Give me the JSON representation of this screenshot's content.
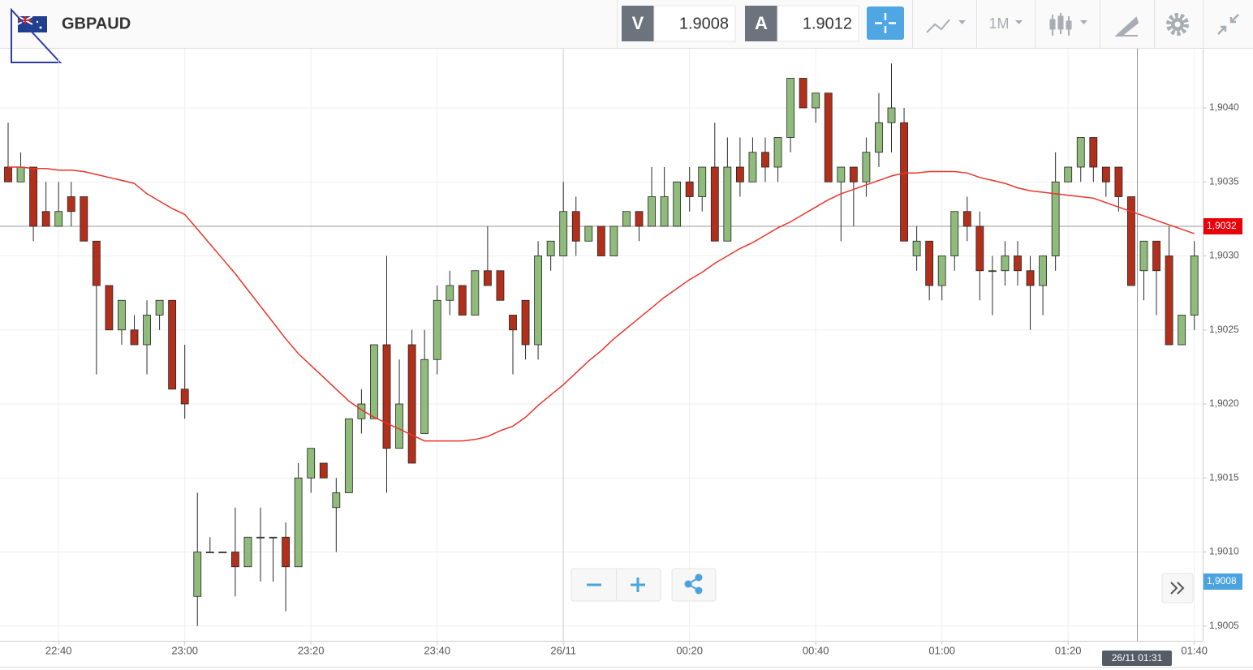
{
  "toolbar": {
    "symbol": "GBPAUD",
    "sell_label": "V",
    "sell_price": "1.9008",
    "buy_label": "A",
    "buy_price": "1.9012",
    "timeframe": "1M"
  },
  "chart_data": {
    "type": "candlestick",
    "categories": [
      null,
      null,
      null,
      null,
      "22:40",
      null,
      null,
      null,
      null,
      null,
      null,
      null,
      null,
      null,
      "23:00",
      null,
      null,
      null,
      null,
      null,
      null,
      null,
      null,
      null,
      "23:20",
      null,
      null,
      null,
      null,
      null,
      null,
      null,
      null,
      null,
      "23:40",
      null,
      null,
      null,
      null,
      null,
      null,
      null,
      null,
      null,
      "26/11",
      null,
      null,
      null,
      null,
      null,
      null,
      null,
      null,
      null,
      "00:20",
      null,
      null,
      null,
      null,
      null,
      null,
      null,
      null,
      null,
      "00:40",
      null,
      null,
      null,
      null,
      null,
      null,
      null,
      null,
      null,
      "01:00",
      null,
      null,
      null,
      null,
      null,
      null,
      null,
      null,
      null,
      "01:20",
      null,
      null,
      null,
      null,
      null,
      null,
      null,
      null,
      null,
      "01:40"
    ],
    "open": [
      1.9036,
      1.9035,
      1.9036,
      1.9033,
      1.9032,
      1.9034,
      1.9034,
      1.9031,
      1.9028,
      1.9025,
      1.9025,
      1.9024,
      1.9026,
      1.9027,
      1.9021,
      1.9007,
      1.901,
      1.901,
      1.901,
      1.9009,
      1.9011,
      1.9011,
      1.9011,
      1.9009,
      1.9015,
      1.9016,
      1.9013,
      1.9014,
      1.9019,
      1.9019,
      1.9024,
      1.9017,
      1.9024,
      1.9018,
      1.9023,
      1.9027,
      1.9028,
      1.9026,
      1.9029,
      1.9029,
      1.9026,
      1.9027,
      1.9024,
      1.903,
      1.903,
      1.9033,
      1.9031,
      1.9032,
      1.903,
      1.9032,
      1.9033,
      1.9032,
      1.9032,
      1.9032,
      1.9035,
      1.9034,
      1.9036,
      1.9031,
      1.9036,
      1.9035,
      1.9037,
      1.9036,
      1.9038,
      1.9042,
      1.904,
      1.9041,
      1.9035,
      1.9036,
      1.9035,
      1.9037,
      1.9039,
      1.9039,
      1.903,
      1.9031,
      1.9028,
      1.903,
      1.9033,
      1.9032,
      1.9029,
      1.9029,
      1.903,
      1.9029,
      1.9028,
      1.903,
      1.9035,
      1.9036,
      1.9038,
      1.9036,
      1.9036,
      1.9034,
      1.9029,
      1.9031,
      1.903,
      1.9024,
      1.9026
    ],
    "high": [
      1.9039,
      1.9037,
      1.9036,
      1.9035,
      1.9035,
      1.9035,
      1.9034,
      1.9031,
      1.9028,
      1.9027,
      1.9026,
      1.9027,
      1.9027,
      1.9027,
      1.9024,
      1.9014,
      1.9011,
      1.901,
      1.9013,
      1.9011,
      1.9013,
      1.9011,
      1.9012,
      1.9016,
      1.9017,
      1.9016,
      1.9015,
      1.9019,
      1.9021,
      1.9024,
      1.903,
      1.9023,
      1.9025,
      1.9025,
      1.9028,
      1.9029,
      1.9028,
      1.9029,
      1.9032,
      1.9029,
      1.9026,
      1.9027,
      1.9031,
      1.9031,
      1.9035,
      1.9034,
      1.9032,
      1.9032,
      1.9032,
      1.9033,
      1.9033,
      1.9036,
      1.9036,
      1.9035,
      1.9036,
      1.9036,
      1.9039,
      1.9038,
      1.9038,
      1.9038,
      1.9038,
      1.9038,
      1.9042,
      1.9042,
      1.9041,
      1.9041,
      1.9036,
      1.9036,
      1.9038,
      1.9041,
      1.9043,
      1.904,
      1.9032,
      1.9031,
      1.903,
      1.9033,
      1.9034,
      1.9033,
      1.903,
      1.9031,
      1.9031,
      1.903,
      1.903,
      1.9037,
      1.9036,
      1.9038,
      1.9038,
      1.9036,
      1.9036,
      1.9034,
      1.9031,
      1.9031,
      1.9032,
      1.9026,
      1.9031
    ],
    "low": [
      1.9035,
      1.9035,
      1.9031,
      1.9032,
      1.9032,
      1.9032,
      1.9031,
      1.9022,
      1.9025,
      1.9024,
      1.9024,
      1.9022,
      1.9025,
      1.9021,
      1.9019,
      1.9005,
      1.901,
      1.901,
      1.9007,
      1.9009,
      1.9008,
      1.9008,
      1.9006,
      1.9009,
      1.9014,
      1.9015,
      1.901,
      1.9014,
      1.9018,
      1.9019,
      1.9014,
      1.9017,
      1.9016,
      1.9018,
      1.9022,
      1.9026,
      1.9026,
      1.9026,
      1.9028,
      1.9027,
      1.9022,
      1.9023,
      1.9023,
      1.9029,
      1.903,
      1.903,
      1.9031,
      1.903,
      1.903,
      1.9032,
      1.9031,
      1.9032,
      1.9032,
      1.9032,
      1.9033,
      1.9033,
      1.9031,
      1.9031,
      1.9034,
      1.9035,
      1.9035,
      1.9035,
      1.9037,
      1.904,
      1.9039,
      1.9035,
      1.9031,
      1.9032,
      1.9034,
      1.9036,
      1.9037,
      1.9031,
      1.9029,
      1.9027,
      1.9027,
      1.9029,
      1.9031,
      1.9027,
      1.9026,
      1.9028,
      1.9028,
      1.9025,
      1.9026,
      1.9029,
      1.9035,
      1.9035,
      1.9035,
      1.9034,
      1.9033,
      1.9028,
      1.9027,
      1.9026,
      1.9024,
      1.9024,
      1.9025
    ],
    "close": [
      1.9035,
      1.9036,
      1.9032,
      1.9032,
      1.9033,
      1.9033,
      1.9031,
      1.9028,
      1.9025,
      1.9027,
      1.9024,
      1.9026,
      1.9027,
      1.9021,
      1.902,
      1.901,
      1.901,
      1.901,
      1.9009,
      1.9011,
      1.9011,
      1.9011,
      1.9009,
      1.9015,
      1.9017,
      1.9015,
      1.9014,
      1.9019,
      1.902,
      1.9024,
      1.9017,
      1.902,
      1.9016,
      1.9023,
      1.9027,
      1.9028,
      1.9026,
      1.9029,
      1.9028,
      1.9027,
      1.9025,
      1.9024,
      1.903,
      1.9031,
      1.9033,
      1.9031,
      1.9032,
      1.903,
      1.9032,
      1.9033,
      1.9032,
      1.9034,
      1.9034,
      1.9035,
      1.9034,
      1.9036,
      1.9031,
      1.9036,
      1.9035,
      1.9037,
      1.9036,
      1.9038,
      1.9042,
      1.904,
      1.9041,
      1.9035,
      1.9036,
      1.9035,
      1.9037,
      1.9039,
      1.904,
      1.9031,
      1.9031,
      1.9028,
      1.903,
      1.9033,
      1.9032,
      1.9029,
      1.9029,
      1.903,
      1.9029,
      1.9028,
      1.903,
      1.9035,
      1.9036,
      1.9038,
      1.9036,
      1.9035,
      1.9034,
      1.9028,
      1.9031,
      1.9029,
      1.9024,
      1.9026,
      1.903
    ],
    "up_color": "#8fbc7a",
    "down_color": "#b2301b",
    "moving_average": {
      "color": "#e8342a",
      "values": [
        1.9036,
        1.9036,
        1.90359,
        1.90359,
        1.90358,
        1.90358,
        1.90357,
        1.90355,
        1.90353,
        1.90351,
        1.90349,
        1.90342,
        1.90337,
        1.90332,
        1.90328,
        1.90318,
        1.90308,
        1.90298,
        1.90288,
        1.90277,
        1.90266,
        1.90255,
        1.90244,
        1.90234,
        1.90226,
        1.90218,
        1.9021,
        1.90202,
        1.90196,
        1.90191,
        1.90187,
        1.90183,
        1.90179,
        1.90175,
        1.90175,
        1.90175,
        1.90175,
        1.90176,
        1.90178,
        1.90182,
        1.90185,
        1.90191,
        1.90199,
        1.90206,
        1.90213,
        1.90221,
        1.90229,
        1.90236,
        1.90244,
        1.90251,
        1.90258,
        1.90265,
        1.90272,
        1.90278,
        1.90284,
        1.90289,
        1.90295,
        1.903,
        1.90305,
        1.90309,
        1.90314,
        1.90319,
        1.90323,
        1.90328,
        1.90333,
        1.90338,
        1.90342,
        1.90345,
        1.90348,
        1.90351,
        1.90354,
        1.90356,
        1.90356,
        1.90357,
        1.90357,
        1.90357,
        1.90356,
        1.90353,
        1.90351,
        1.90349,
        1.90346,
        1.90344,
        1.90343,
        1.90342,
        1.90341,
        1.9034,
        1.90339,
        1.90336,
        1.90333,
        1.9033,
        1.90327,
        1.90324,
        1.90321,
        1.90318,
        1.90315
      ]
    },
    "ylim": [
      1.9004,
      1.9044
    ],
    "yticks": [
      {
        "value": 1.9005,
        "label": "1,9005"
      },
      {
        "value": 1.901,
        "label": "1,9010"
      },
      {
        "value": 1.9015,
        "label": "1,9015"
      },
      {
        "value": 1.902,
        "label": "1,9020"
      },
      {
        "value": 1.9025,
        "label": "1,9025"
      },
      {
        "value": 1.903,
        "label": "1,9030"
      },
      {
        "value": 1.9035,
        "label": "1,9035"
      },
      {
        "value": 1.904,
        "label": "1,9040"
      }
    ],
    "grid": true,
    "last_price": {
      "value": 1.9032,
      "label": "1,9032",
      "color": "#e8000b"
    },
    "bid_price": {
      "value": 1.9008,
      "label": "1,9008",
      "color": "#4aa3df"
    },
    "crosshair_label": "26/11 01:31"
  }
}
